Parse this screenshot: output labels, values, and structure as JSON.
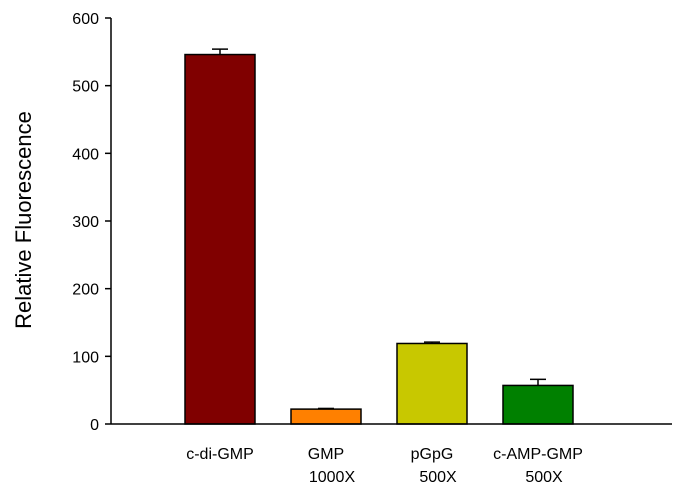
{
  "chart_data": {
    "type": "bar",
    "title": "",
    "xlabel": "",
    "ylabel": "Relative Fluorescence",
    "ylim": [
      0,
      600
    ],
    "yticks": [
      0,
      100,
      200,
      300,
      400,
      500,
      600
    ],
    "grid": false,
    "categories": [
      {
        "line1": "c-di-GMP",
        "line2": ""
      },
      {
        "line1": "GMP",
        "line2": "1000X"
      },
      {
        "line1": "pGpG",
        "line2": "500X"
      },
      {
        "line1": "c-AMP-GMP",
        "line2": "500X"
      }
    ],
    "values": [
      546,
      22,
      119,
      57
    ],
    "errors": [
      8,
      1,
      2,
      9
    ],
    "colors": [
      "#800000",
      "#FF8000",
      "#C8C800",
      "#008000"
    ]
  }
}
